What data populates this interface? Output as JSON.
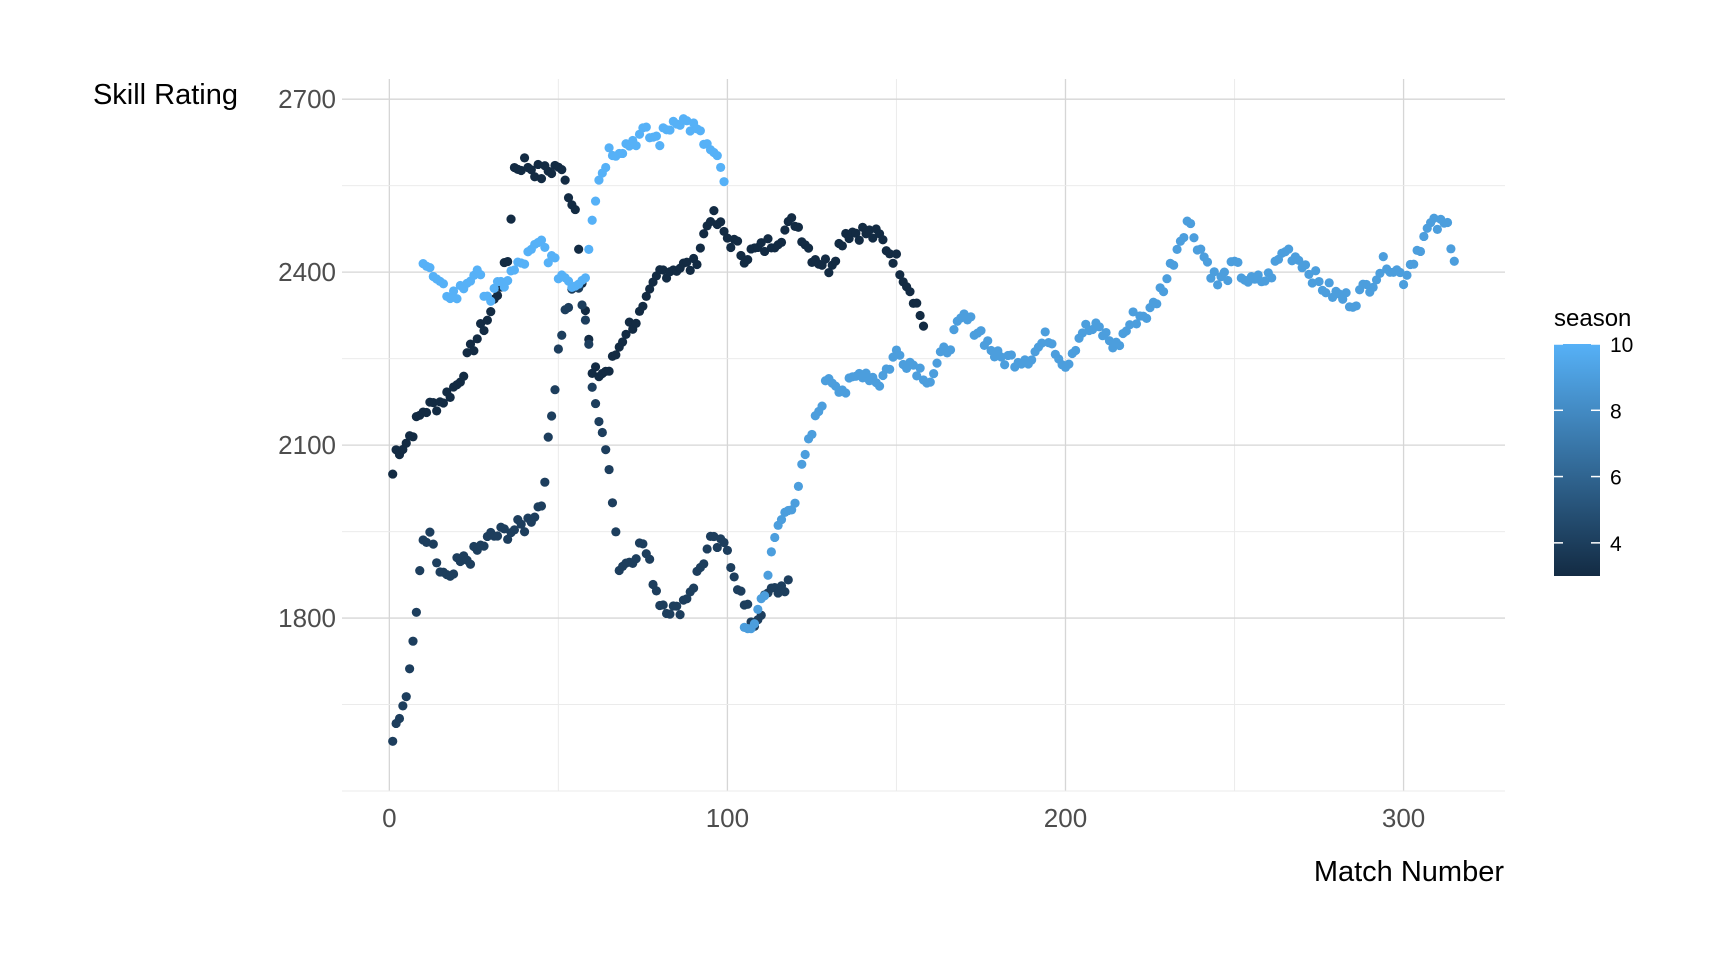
{
  "chart_data": {
    "type": "scatter",
    "xlabel": "Match Number",
    "ylabel": "Skill Rating",
    "xlim": [
      -14,
      330
    ],
    "ylim": [
      1500,
      2735
    ],
    "x_ticks": [
      0,
      100,
      200,
      300
    ],
    "y_ticks": [
      1800,
      2100,
      2400,
      2700
    ],
    "x_tick_labels": [
      "0",
      "100",
      "200",
      "300"
    ],
    "y_tick_labels": [
      "1800",
      "2100",
      "2400",
      "2700"
    ],
    "grid": true,
    "color_scale": {
      "title": "season",
      "min": 3,
      "max": 10,
      "low_color": "#132B43",
      "high_color": "#56B1F7",
      "breaks": [
        4,
        6,
        8,
        10
      ],
      "break_labels": [
        "4",
        "6",
        "8",
        "10"
      ],
      "placement": "right"
    },
    "series": [
      {
        "color_value": 3,
        "anchors_x": [
          1,
          2,
          5,
          10,
          15,
          20,
          25,
          30,
          35,
          37,
          40,
          45,
          50,
          55,
          60,
          65,
          70,
          75,
          80,
          85,
          90,
          95,
          100,
          105,
          110,
          115,
          120,
          125,
          130,
          135,
          140,
          145,
          150,
          155,
          158
        ],
        "anchors_y": [
          2050,
          2090,
          2105,
          2160,
          2175,
          2205,
          2275,
          2330,
          2420,
          2580,
          2590,
          2570,
          2585,
          2510,
          2220,
          2230,
          2300,
          2330,
          2400,
          2410,
          2410,
          2500,
          2460,
          2430,
          2440,
          2460,
          2490,
          2430,
          2410,
          2470,
          2470,
          2460,
          2420,
          2360,
          2310
        ]
      },
      {
        "color_value": 4,
        "anchors_x": [
          1,
          3,
          6,
          8,
          10,
          12,
          15,
          18,
          20,
          25,
          30,
          35,
          40,
          45,
          48,
          50,
          52,
          55,
          58,
          60,
          63,
          65,
          68,
          70,
          75,
          80,
          85,
          90,
          95,
          100,
          105,
          108,
          112,
          115,
          118
        ],
        "anchors_y": [
          1585,
          1625,
          1700,
          1810,
          1930,
          1935,
          1880,
          1860,
          1890,
          1910,
          1940,
          1950,
          1960,
          2000,
          2150,
          2270,
          2330,
          2380,
          2320,
          2210,
          2110,
          2070,
          1890,
          1895,
          1930,
          1830,
          1810,
          1860,
          1930,
          1920,
          1820,
          1790,
          1840,
          1850,
          1860
        ]
      },
      {
        "color_value": 9,
        "anchors_x": [
          105,
          108,
          111,
          115,
          120,
          125,
          130,
          135,
          140,
          145,
          150,
          155,
          160,
          165,
          170,
          175,
          180,
          185,
          190,
          195,
          200,
          205,
          210,
          215,
          220,
          225,
          230,
          234,
          236,
          240,
          245,
          250,
          255,
          260,
          265,
          270,
          275,
          280,
          285,
          290,
          295,
          300,
          305,
          308,
          313,
          315
        ],
        "anchors_y": [
          1770,
          1795,
          1850,
          1960,
          2010,
          2120,
          2220,
          2195,
          2230,
          2210,
          2260,
          2240,
          2215,
          2270,
          2320,
          2295,
          2250,
          2250,
          2255,
          2290,
          2240,
          2300,
          2300,
          2270,
          2320,
          2330,
          2390,
          2460,
          2490,
          2440,
          2380,
          2410,
          2380,
          2390,
          2440,
          2420,
          2380,
          2360,
          2350,
          2380,
          2420,
          2390,
          2450,
          2480,
          2480,
          2430
        ]
      },
      {
        "color_value": 10,
        "anchors_x": [
          10,
          15,
          20,
          25,
          30,
          35,
          40,
          45,
          50,
          55,
          58,
          60,
          62,
          65,
          70,
          75,
          80,
          85,
          90,
          95,
          97,
          99
        ],
        "anchors_y": [
          2420,
          2370,
          2360,
          2400,
          2355,
          2390,
          2420,
          2450,
          2400,
          2380,
          2400,
          2500,
          2560,
          2610,
          2620,
          2640,
          2630,
          2670,
          2650,
          2610,
          2590,
          2560
        ]
      }
    ]
  }
}
